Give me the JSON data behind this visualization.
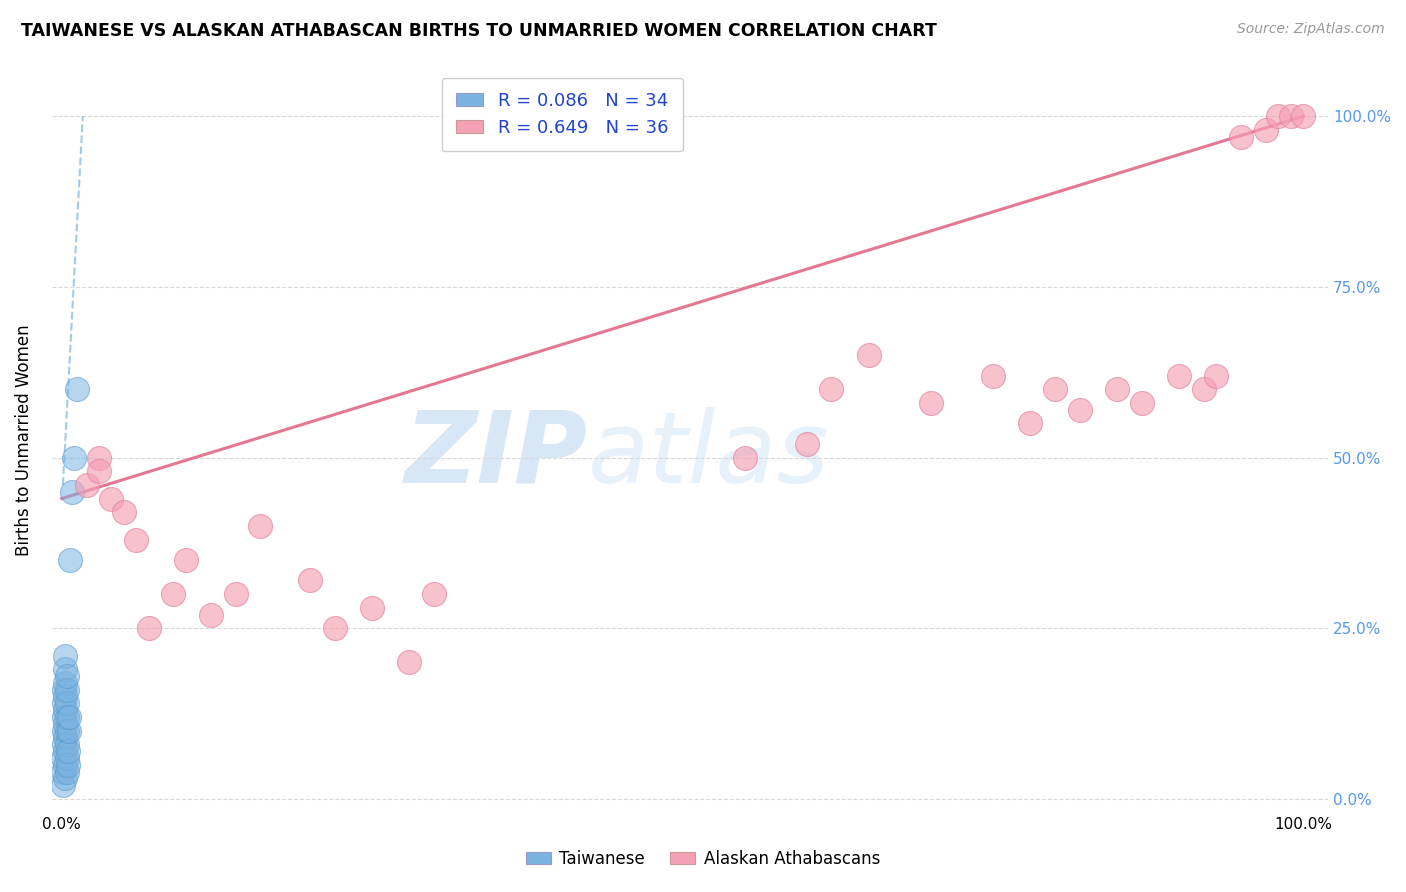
{
  "title": "TAIWANESE VS ALASKAN ATHABASCAN BIRTHS TO UNMARRIED WOMEN CORRELATION CHART",
  "source": "Source: ZipAtlas.com",
  "ylabel": "Births to Unmarried Women",
  "legend_label1": "Taiwanese",
  "legend_label2": "Alaskan Athabascans",
  "r1": "0.086",
  "n1": "34",
  "r2": "0.649",
  "n2": "36",
  "watermark_zip": "ZIP",
  "watermark_atlas": "atlas",
  "blue_color": "#7ab3e0",
  "pink_color": "#f4a0b5",
  "blue_line_color": "#7ab3e0",
  "pink_line_color": "#e06080",
  "grid_color": "#d8d8d8",
  "right_axis_color": "#5599ee",
  "taiwanese_x": [
    0.001,
    0.001,
    0.001,
    0.002,
    0.002,
    0.002,
    0.002,
    0.002,
    0.003,
    0.003,
    0.003,
    0.003,
    0.003,
    0.003,
    0.003,
    0.003,
    0.003,
    0.003,
    0.004,
    0.004,
    0.004,
    0.004,
    0.004,
    0.004,
    0.004,
    0.004,
    0.005,
    0.005,
    0.006,
    0.006,
    0.007,
    0.008,
    0.01,
    0.012
  ],
  "taiwanese_y": [
    0.02,
    0.04,
    0.06,
    0.08,
    0.1,
    0.12,
    0.14,
    0.16,
    0.03,
    0.05,
    0.07,
    0.09,
    0.11,
    0.13,
    0.15,
    0.17,
    0.19,
    0.21,
    0.04,
    0.06,
    0.08,
    0.1,
    0.12,
    0.14,
    0.16,
    0.18,
    0.05,
    0.07,
    0.1,
    0.12,
    0.35,
    0.45,
    0.5,
    0.6
  ],
  "alaskan_x": [
    0.02,
    0.03,
    0.03,
    0.04,
    0.05,
    0.06,
    0.07,
    0.09,
    0.1,
    0.12,
    0.14,
    0.16,
    0.2,
    0.22,
    0.25,
    0.28,
    0.3,
    0.55,
    0.6,
    0.62,
    0.65,
    0.7,
    0.75,
    0.78,
    0.8,
    0.82,
    0.85,
    0.87,
    0.9,
    0.92,
    0.93,
    0.95,
    0.97,
    0.98,
    0.99,
    1.0
  ],
  "alaskan_y": [
    0.46,
    0.5,
    0.48,
    0.44,
    0.42,
    0.38,
    0.25,
    0.3,
    0.35,
    0.27,
    0.3,
    0.4,
    0.32,
    0.25,
    0.28,
    0.2,
    0.3,
    0.5,
    0.52,
    0.6,
    0.65,
    0.58,
    0.62,
    0.55,
    0.6,
    0.57,
    0.6,
    0.58,
    0.62,
    0.6,
    0.62,
    0.97,
    0.98,
    1.0,
    1.0,
    1.0
  ],
  "pink_line_x0": 0.0,
  "pink_line_y0": 0.44,
  "pink_line_x1": 1.0,
  "pink_line_y1": 1.0,
  "blue_line_x0": 0.001,
  "blue_line_y0": 0.46,
  "blue_line_x1": 0.017,
  "blue_line_y1": 1.0,
  "yticks": [
    0.0,
    0.25,
    0.5,
    0.75,
    1.0
  ],
  "ytick_labels_right": [
    "0.0%",
    "25.0%",
    "50.0%",
    "75.0%",
    "100.0%"
  ],
  "xticks": [
    0.0,
    0.1,
    0.2,
    0.3,
    0.4,
    0.5,
    0.6,
    0.7,
    0.8,
    0.9,
    1.0
  ]
}
